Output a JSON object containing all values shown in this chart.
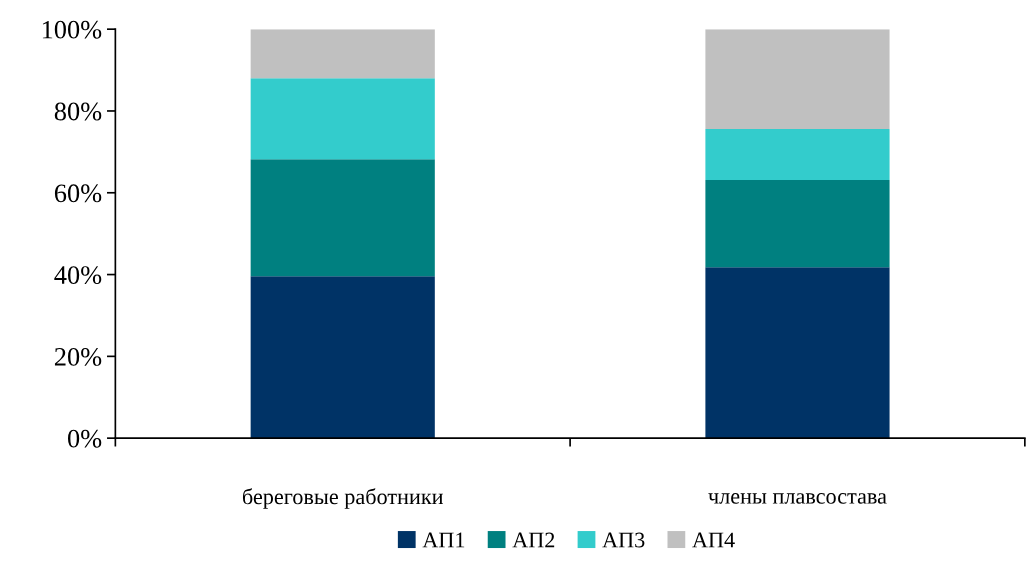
{
  "chart_data": {
    "type": "bar",
    "stacked": true,
    "categories": [
      "береговые работники",
      "члены плавсостава"
    ],
    "series": [
      {
        "name": "АП1",
        "color": "#003366",
        "values": [
          39.6,
          41.8
        ]
      },
      {
        "name": "АП2",
        "color": "#008080",
        "values": [
          28.6,
          21.3
        ]
      },
      {
        "name": "АП3",
        "color": "#33cccc",
        "values": [
          19.8,
          12.5
        ]
      },
      {
        "name": "АП4",
        "color": "#c0c0c0",
        "values": [
          12.0,
          24.4
        ]
      }
    ],
    "ylim": [
      0,
      100
    ],
    "yticks": [
      {
        "value": 0,
        "label": "0%"
      },
      {
        "value": 20,
        "label": "20%"
      },
      {
        "value": 40,
        "label": "40%"
      },
      {
        "value": 60,
        "label": "60%"
      },
      {
        "value": 80,
        "label": "80%"
      },
      {
        "value": 100,
        "label": "100%"
      }
    ],
    "grid": false,
    "legend": "bottom"
  }
}
